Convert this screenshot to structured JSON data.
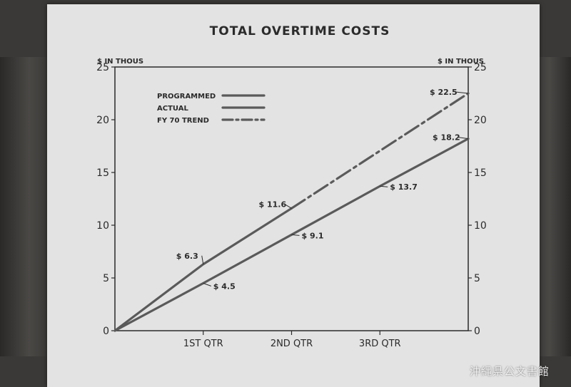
{
  "chart_data": {
    "type": "line",
    "title": "TOTAL OVERTIME COSTS",
    "ylabel_left": "$ IN THOUS",
    "ylabel_right": "$ IN THOUS",
    "ylim": [
      0,
      25
    ],
    "yticks": [
      0,
      5,
      10,
      15,
      20,
      25
    ],
    "x_tick_labels": [
      "1ST QTR",
      "2ND QTR",
      "3RD QTR"
    ],
    "x": [
      0,
      1,
      2,
      3,
      4
    ],
    "grid": false,
    "legend_position": "top-left",
    "series": [
      {
        "name": "PROGRAMMED",
        "style": "solid",
        "x": [
          0,
          1,
          2,
          3,
          4
        ],
        "values": [
          0,
          4.5,
          9.1,
          13.7,
          18.2
        ]
      },
      {
        "name": "ACTUAL",
        "style": "solid",
        "x": [
          0,
          1,
          2
        ],
        "values": [
          0,
          6.3,
          11.6
        ]
      },
      {
        "name": "FY 70 TREND",
        "style": "dashdot",
        "x": [
          2,
          4
        ],
        "values": [
          11.6,
          22.5
        ]
      }
    ],
    "annotations": [
      {
        "text": "$ 6.3",
        "x": 1,
        "y": 6.3
      },
      {
        "text": "$ 4.5",
        "x": 1,
        "y": 4.5
      },
      {
        "text": "$ 11.6",
        "x": 2,
        "y": 11.6
      },
      {
        "text": "$ 9.1",
        "x": 2,
        "y": 9.1
      },
      {
        "text": "$ 13.7",
        "x": 3,
        "y": 13.7
      },
      {
        "text": "$ 22.5",
        "x": 4,
        "y": 22.5
      },
      {
        "text": "$ 18.2",
        "x": 4,
        "y": 18.2
      }
    ]
  },
  "watermark": "沖縄県公文書館",
  "colors": {
    "board": "#e3e3e3",
    "ink": "#2b2b2b",
    "line": "#5a5a5a",
    "background": "#3a3937"
  }
}
